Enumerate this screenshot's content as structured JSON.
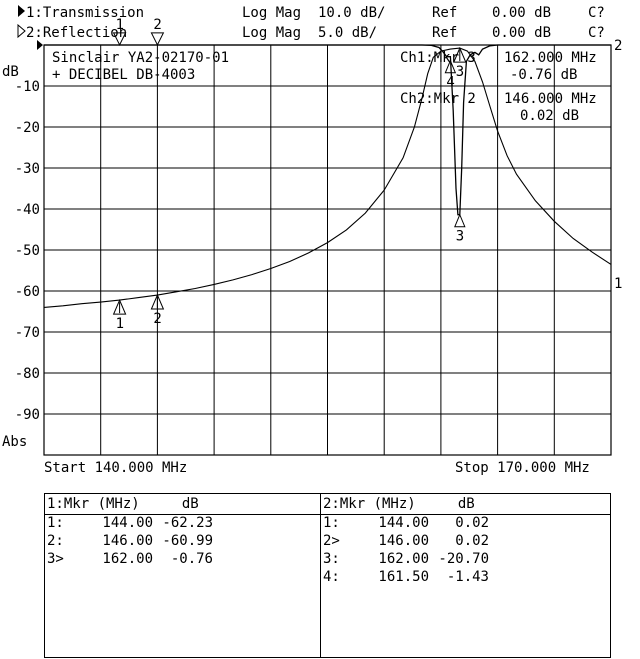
{
  "header": {
    "ch1_indicator": "1:Transmission",
    "ch1_format": "Log Mag",
    "ch1_scale": "10.0 dB/",
    "ch1_ref_label": "Ref",
    "ch1_ref_value": "0.00 dB",
    "ch1_cal": "C?",
    "ch2_indicator": "2:Reflection",
    "ch2_format": "Log Mag",
    "ch2_scale": "5.0 dB/",
    "ch2_ref_label": "Ref",
    "ch2_ref_value": "0.00 dB",
    "ch2_cal": "C?"
  },
  "device": {
    "line1": "Sinclair YA2-02170-01",
    "line2": "+ DECIBEL DB-4003"
  },
  "marker_readouts": {
    "ch1_label": "Ch1:Mkr 3",
    "ch1_freq": "162.000 MHz",
    "ch1_value": "-0.76 dB",
    "ch2_label": "Ch2:Mkr 2",
    "ch2_freq": "146.000 MHz",
    "ch2_value": "0.02 dB"
  },
  "axis": {
    "unit_top": "dB",
    "unit_bottom": "Abs",
    "start": "Start 140.000 MHz",
    "stop": "Stop 170.000 MHz",
    "trace1_label": "1",
    "trace2_label": "2"
  },
  "table_ch1": {
    "header": "1:Mkr (MHz)     dB",
    "rows": [
      {
        "id": "1:",
        "freq": "144.00",
        "value": "-62.23"
      },
      {
        "id": "2:",
        "freq": "146.00",
        "value": "-60.99"
      },
      {
        "id": "3>",
        "freq": "162.00",
        "value": "-0.76"
      }
    ]
  },
  "table_ch2": {
    "header": "2:Mkr (MHz)     dB",
    "rows": [
      {
        "id": "1:",
        "freq": "144.00",
        "value": "0.02"
      },
      {
        "id": "2>",
        "freq": "146.00",
        "value": "0.02"
      },
      {
        "id": "3:",
        "freq": "162.00",
        "value": "-20.70"
      },
      {
        "id": "4:",
        "freq": "161.50",
        "value": "-1.43"
      }
    ]
  },
  "chart_data": {
    "type": "line",
    "xlim": [
      140,
      170
    ],
    "ylim": [
      -100,
      0
    ],
    "ylabel": "dB",
    "x_tick_labels": [
      "Start 140.000 MHz",
      "Stop 170.000 MHz"
    ],
    "y_ticks": [
      -10,
      -20,
      -30,
      -40,
      -50,
      -60,
      -70,
      -80,
      -90
    ],
    "grid": true,
    "series": [
      {
        "name": "1:Transmission",
        "points": [
          [
            140,
            -64.0
          ],
          [
            141,
            -63.6
          ],
          [
            142,
            -63.1
          ],
          [
            143,
            -62.7
          ],
          [
            144,
            -62.23
          ],
          [
            145,
            -61.6
          ],
          [
            146,
            -60.99
          ],
          [
            147,
            -60.2
          ],
          [
            148,
            -59.4
          ],
          [
            149,
            -58.4
          ],
          [
            150,
            -57.3
          ],
          [
            151,
            -56.0
          ],
          [
            152,
            -54.5
          ],
          [
            153,
            -52.8
          ],
          [
            154,
            -50.7
          ],
          [
            155,
            -48.2
          ],
          [
            156,
            -45.1
          ],
          [
            157,
            -41.0
          ],
          [
            158,
            -35.4
          ],
          [
            159,
            -27.5
          ],
          [
            159.6,
            -20.0
          ],
          [
            160.0,
            -13.0
          ],
          [
            160.3,
            -7.0
          ],
          [
            160.6,
            -3.0
          ],
          [
            161.0,
            -1.5
          ],
          [
            161.5,
            -1.0
          ],
          [
            162.0,
            -0.76
          ],
          [
            162.4,
            -1.5
          ],
          [
            162.8,
            -4.0
          ],
          [
            163.2,
            -9.0
          ],
          [
            163.6,
            -15.0
          ],
          [
            164.0,
            -21.0
          ],
          [
            164.5,
            -27.0
          ],
          [
            165,
            -31.5
          ],
          [
            166,
            -38.0
          ],
          [
            167,
            -43.0
          ],
          [
            168,
            -47.2
          ],
          [
            169,
            -50.5
          ],
          [
            170,
            -53.5
          ]
        ]
      },
      {
        "name": "2:Reflection",
        "points": [
          [
            140,
            0.0
          ],
          [
            160.0,
            0.0
          ],
          [
            160.5,
            -0.05
          ],
          [
            160.9,
            -0.3
          ],
          [
            161.1,
            -0.8
          ],
          [
            161.3,
            -1.43
          ],
          [
            161.5,
            -1.43
          ],
          [
            161.65,
            -8.0
          ],
          [
            161.8,
            -17.5
          ],
          [
            161.9,
            -20.7
          ],
          [
            162.0,
            -20.7
          ],
          [
            162.1,
            -15.0
          ],
          [
            162.2,
            -7.0
          ],
          [
            162.35,
            -2.0
          ],
          [
            162.55,
            -1.2
          ],
          [
            162.8,
            -0.9
          ],
          [
            163.0,
            -1.2
          ],
          [
            163.2,
            -0.5
          ],
          [
            163.6,
            -0.1
          ],
          [
            164.0,
            0.0
          ],
          [
            170,
            0.0
          ]
        ]
      }
    ],
    "markers": [
      {
        "series": 0,
        "label": "1",
        "x": 144.0,
        "y": -62.23
      },
      {
        "series": 0,
        "label": "2",
        "x": 146.0,
        "y": -60.99
      },
      {
        "series": 0,
        "label": "3",
        "x": 162.0,
        "y": -0.76
      },
      {
        "series": 1,
        "label": "1",
        "x": 144.0,
        "y": 0.02
      },
      {
        "series": 1,
        "label": "2",
        "x": 146.0,
        "y": 0.02
      },
      {
        "series": 1,
        "label": "3",
        "x": 162.0,
        "y": -20.7
      },
      {
        "series": 1,
        "label": "4",
        "x": 161.5,
        "y": -1.43
      }
    ]
  }
}
